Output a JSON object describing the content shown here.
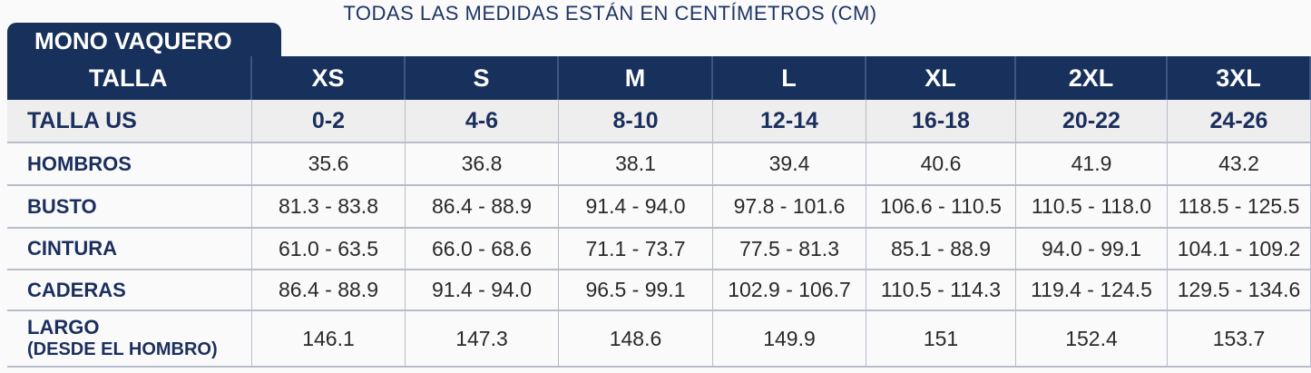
{
  "header": {
    "title": "TODAS LAS MEDIDAS ESTÁN EN CENTÍMETROS (CM)"
  },
  "table": {
    "name": "MONO VAQUERO",
    "columns": [
      "TALLA",
      "XS",
      "S",
      "M",
      "L",
      "XL",
      "2XL",
      "3XL"
    ],
    "rows": [
      {
        "label": "TALLA US",
        "values": [
          "0-2",
          "4-6",
          "8-10",
          "12-14",
          "16-18",
          "20-22",
          "24-26"
        ]
      },
      {
        "label": "HOMBROS",
        "values": [
          "35.6",
          "36.8",
          "38.1",
          "39.4",
          "40.6",
          "41.9",
          "43.2"
        ]
      },
      {
        "label": "BUSTO",
        "values": [
          "81.3 - 83.8",
          "86.4 - 88.9",
          "91.4 - 94.0",
          "97.8 - 101.6",
          "106.6 - 110.5",
          "110.5 - 118.0",
          "118.5 - 125.5"
        ]
      },
      {
        "label": "CINTURA",
        "values": [
          "61.0 - 63.5",
          "66.0 - 68.6",
          "71.1 - 73.7",
          "77.5 - 81.3",
          "85.1 - 88.9",
          "94.0 - 99.1",
          "104.1 - 109.2"
        ]
      },
      {
        "label": "CADERAS",
        "values": [
          "86.4 - 88.9",
          "91.4 - 94.0",
          "96.5 - 99.1",
          "102.9 - 106.7",
          "110.5 - 114.3",
          "119.4 - 124.5",
          "129.5 - 134.6"
        ]
      },
      {
        "label": "LARGO",
        "sublabel": "(DESDE EL HOMBRO)",
        "values": [
          "146.1",
          "147.3",
          "148.6",
          "149.9",
          "151",
          "152.4",
          "153.7"
        ]
      }
    ]
  }
}
